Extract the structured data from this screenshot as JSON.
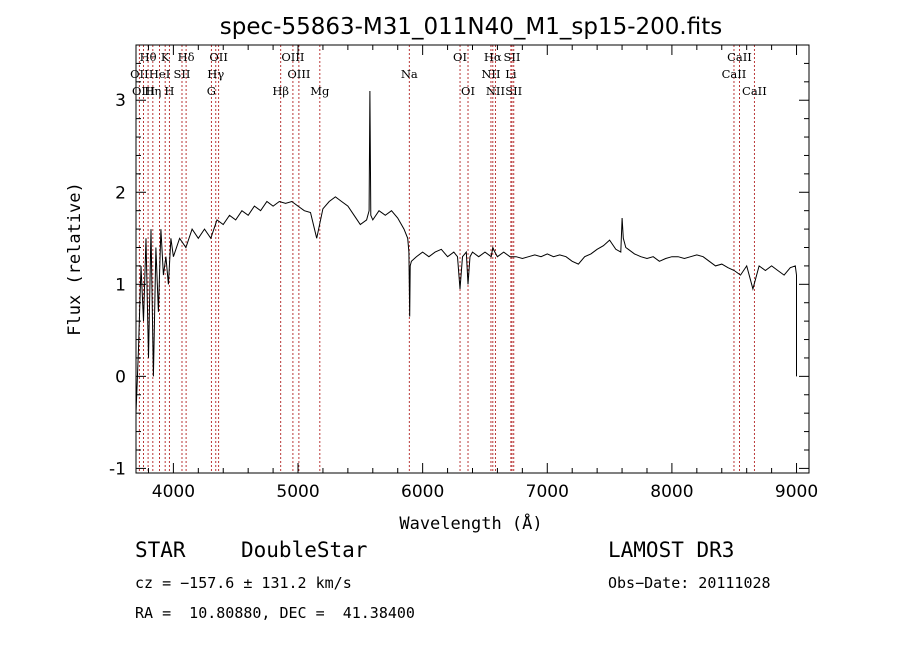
{
  "chart_data": {
    "type": "line",
    "title": "spec-55863-M31_011N40_M1_sp15-200.fits",
    "xlabel": "Wavelength (Å)",
    "ylabel": "Flux (relative)",
    "xlim": [
      3700,
      9100
    ],
    "ylim": [
      -1.05,
      3.6
    ],
    "xticks": [
      4000,
      5000,
      6000,
      7000,
      8000,
      9000
    ],
    "yticks": [
      -1,
      0,
      1,
      2,
      3
    ],
    "series": [
      {
        "name": "flux",
        "x": [
          3700,
          3720,
          3740,
          3760,
          3780,
          3800,
          3820,
          3840,
          3860,
          3880,
          3900,
          3920,
          3940,
          3960,
          3980,
          4000,
          4050,
          4100,
          4150,
          4200,
          4250,
          4300,
          4350,
          4400,
          4450,
          4500,
          4550,
          4600,
          4650,
          4700,
          4750,
          4800,
          4850,
          4900,
          4950,
          5000,
          5050,
          5100,
          5150,
          5200,
          5250,
          5300,
          5350,
          5400,
          5450,
          5500,
          5550,
          5570,
          5577,
          5584,
          5600,
          5650,
          5700,
          5750,
          5800,
          5850,
          5880,
          5890,
          5896,
          5900,
          5910,
          5950,
          6000,
          6050,
          6100,
          6150,
          6200,
          6250,
          6280,
          6300,
          6320,
          6350,
          6364,
          6380,
          6400,
          6450,
          6500,
          6550,
          6563,
          6580,
          6600,
          6650,
          6700,
          6750,
          6800,
          6850,
          6900,
          6950,
          7000,
          7050,
          7100,
          7150,
          7200,
          7250,
          7300,
          7350,
          7400,
          7450,
          7500,
          7550,
          7590,
          7600,
          7610,
          7630,
          7650,
          7700,
          7750,
          7800,
          7850,
          7900,
          7950,
          8000,
          8050,
          8100,
          8150,
          8200,
          8250,
          8300,
          8350,
          8400,
          8450,
          8500,
          8550,
          8600,
          8650,
          8700,
          8750,
          8800,
          8850,
          8900,
          8950,
          8990,
          9000,
          9000
        ],
        "y": [
          -0.4,
          0.3,
          1.2,
          0.6,
          1.5,
          0.2,
          1.6,
          0.0,
          1.4,
          0.7,
          1.6,
          1.1,
          1.3,
          1.0,
          1.5,
          1.3,
          1.5,
          1.4,
          1.6,
          1.5,
          1.6,
          1.5,
          1.7,
          1.65,
          1.75,
          1.7,
          1.8,
          1.75,
          1.85,
          1.8,
          1.9,
          1.85,
          1.9,
          1.88,
          1.9,
          1.85,
          1.8,
          1.78,
          1.5,
          1.82,
          1.9,
          1.95,
          1.9,
          1.85,
          1.75,
          1.65,
          1.7,
          1.8,
          3.1,
          1.75,
          1.7,
          1.8,
          1.75,
          1.8,
          1.72,
          1.6,
          1.5,
          1.35,
          0.65,
          1.2,
          1.25,
          1.3,
          1.35,
          1.3,
          1.35,
          1.38,
          1.3,
          1.35,
          1.3,
          0.95,
          1.3,
          1.35,
          1.0,
          1.3,
          1.35,
          1.3,
          1.35,
          1.3,
          1.4,
          1.35,
          1.3,
          1.35,
          1.3,
          1.3,
          1.28,
          1.3,
          1.32,
          1.3,
          1.33,
          1.3,
          1.32,
          1.3,
          1.25,
          1.22,
          1.3,
          1.33,
          1.38,
          1.42,
          1.48,
          1.38,
          1.35,
          1.72,
          1.5,
          1.4,
          1.38,
          1.33,
          1.3,
          1.28,
          1.3,
          1.25,
          1.28,
          1.3,
          1.3,
          1.28,
          1.3,
          1.32,
          1.3,
          1.25,
          1.2,
          1.22,
          1.18,
          1.15,
          1.1,
          1.2,
          0.95,
          1.2,
          1.15,
          1.2,
          1.15,
          1.1,
          1.18,
          1.2,
          1.1,
          0.0
        ]
      }
    ],
    "line_markers": [
      {
        "label": "Hθ",
        "wl": 3797,
        "row": 1
      },
      {
        "label": "K",
        "wl": 3934,
        "row": 1
      },
      {
        "label": "Hδ",
        "wl": 4102,
        "row": 1
      },
      {
        "label": "OII",
        "wl": 4363,
        "row": 1
      },
      {
        "label": "OIII",
        "wl": 4959,
        "row": 1
      },
      {
        "label": "OI",
        "wl": 6300,
        "row": 1
      },
      {
        "label": "Hα",
        "wl": 6563,
        "row": 1
      },
      {
        "label": "SII",
        "wl": 6717,
        "row": 1
      },
      {
        "label": "CaII",
        "wl": 8542,
        "row": 1
      },
      {
        "label": "OII",
        "wl": 3727,
        "row": 2
      },
      {
        "label": "HeI",
        "wl": 3889,
        "row": 2
      },
      {
        "label": "SII",
        "wl": 4069,
        "row": 2
      },
      {
        "label": "Hγ",
        "wl": 4340,
        "row": 2
      },
      {
        "label": "OIII",
        "wl": 5007,
        "row": 2
      },
      {
        "label": "Na",
        "wl": 5893,
        "row": 2
      },
      {
        "label": "NII",
        "wl": 6548,
        "row": 2
      },
      {
        "label": "Li",
        "wl": 6708,
        "row": 2
      },
      {
        "label": "CaII",
        "wl": 8498,
        "row": 2
      },
      {
        "label": "OIII",
        "wl": 3760,
        "row": 3
      },
      {
        "label": "Hη",
        "wl": 3835,
        "row": 3
      },
      {
        "label": "H",
        "wl": 3968,
        "row": 3
      },
      {
        "label": "G",
        "wl": 4305,
        "row": 3
      },
      {
        "label": "Hβ",
        "wl": 4861,
        "row": 3
      },
      {
        "label": "Mg",
        "wl": 5175,
        "row": 3
      },
      {
        "label": "OI",
        "wl": 6364,
        "row": 3
      },
      {
        "label": "NII",
        "wl": 6584,
        "row": 3
      },
      {
        "label": "SII",
        "wl": 6731,
        "row": 3
      },
      {
        "label": "CaII",
        "wl": 8662,
        "row": 3
      }
    ]
  },
  "info": {
    "object_class": "STAR",
    "subclass": "DoubleStar",
    "survey": "LAMOST DR3",
    "cz": "cz = −157.6 ± 131.2 km/s",
    "obs_date": "Obs−Date: 20111028",
    "coords": "RA =  10.80880, DEC =  41.38400"
  }
}
